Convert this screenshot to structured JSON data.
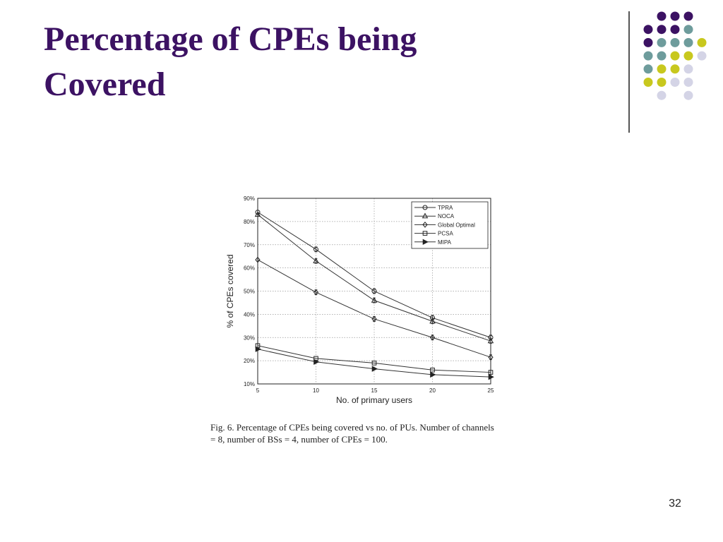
{
  "slide": {
    "title_line1": "Percentage of CPEs being",
    "title_line2": "Covered",
    "caption_line1": "Fig. 6.   Percentage of CPEs being covered vs no. of PUs. Number of channels",
    "caption_line2": "= 8, number of BSs = 4, number of CPEs = 100.",
    "page_number": "32",
    "colors": {
      "title": "#3c1263",
      "dot_purple": "#3c1263",
      "dot_teal": "#6e9c9c",
      "dot_yellow": "#c8c81e",
      "dot_lavender": "#d4d4e6"
    }
  },
  "chart_data": {
    "type": "line",
    "title": "",
    "xlabel": "No. of primary users",
    "ylabel": "% of CPEs covered",
    "x": [
      5,
      10,
      15,
      20,
      25
    ],
    "x_ticks": [
      "5",
      "10",
      "15",
      "20",
      "25"
    ],
    "y_ticks": [
      "10%",
      "20%",
      "30%",
      "40%",
      "50%",
      "60%",
      "70%",
      "80%",
      "90%"
    ],
    "xlim": [
      5,
      25
    ],
    "ylim": [
      10,
      90
    ],
    "grid": true,
    "legend_position": "top-right",
    "series": [
      {
        "name": "TPRA",
        "marker": "circle",
        "values": [
          84,
          68,
          50,
          38.5,
          30
        ]
      },
      {
        "name": "NOCA",
        "marker": "triangle-up",
        "values": [
          83,
          63,
          46,
          37,
          28.5
        ]
      },
      {
        "name": "Global Optimal",
        "marker": "diamond",
        "values": [
          63.5,
          49.5,
          38,
          30,
          21.5
        ]
      },
      {
        "name": "PCSA",
        "marker": "square",
        "values": [
          26.5,
          21,
          19,
          16,
          15
        ]
      },
      {
        "name": "MIPA",
        "marker": "triangle-right",
        "values": [
          25,
          19.5,
          16.5,
          14,
          13
        ]
      }
    ]
  }
}
